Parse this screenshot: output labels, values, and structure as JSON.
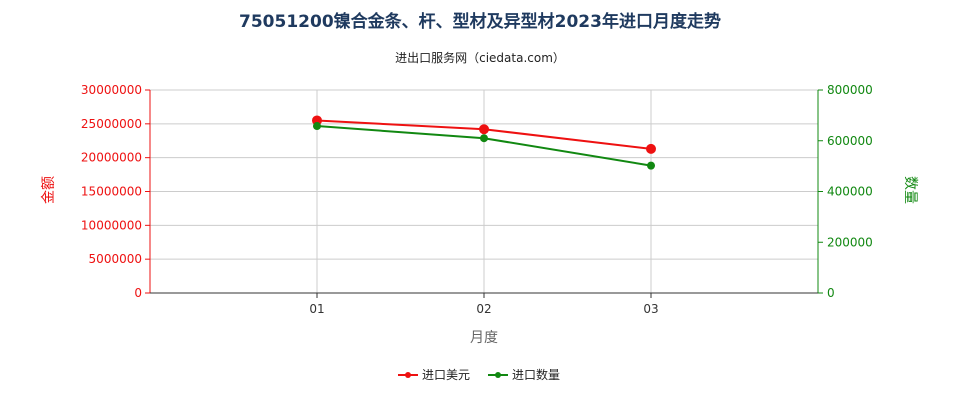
{
  "chart_data": {
    "type": "line",
    "title": "75051200镍合金条、杆、型材及异型材2023年进口月度走势",
    "subtitle": "进出口服务网（ciedata.com）",
    "xlabel": "月度",
    "ylabel_left": "金额",
    "ylabel_right": "数量",
    "categories": [
      "01",
      "02",
      "03"
    ],
    "ylim_left": [
      0,
      30000000
    ],
    "ylim_right": [
      0,
      800000
    ],
    "yticks_left": [
      "0",
      "5000000",
      "10000000",
      "15000000",
      "20000000",
      "25000000",
      "30000000"
    ],
    "yticks_right": [
      "0",
      "200000",
      "400000",
      "600000",
      "800000"
    ],
    "grid": true,
    "legend_position": "bottom",
    "series": [
      {
        "name": "进口美元",
        "axis": "left",
        "color": "#ee1111",
        "values": [
          25500000,
          24200000,
          21300000
        ]
      },
      {
        "name": "进口数量",
        "axis": "right",
        "color": "#118811",
        "values": [
          658000,
          610000,
          502000
        ]
      }
    ],
    "axis_colors": {
      "left": "#ee1111",
      "right": "#118811"
    }
  }
}
